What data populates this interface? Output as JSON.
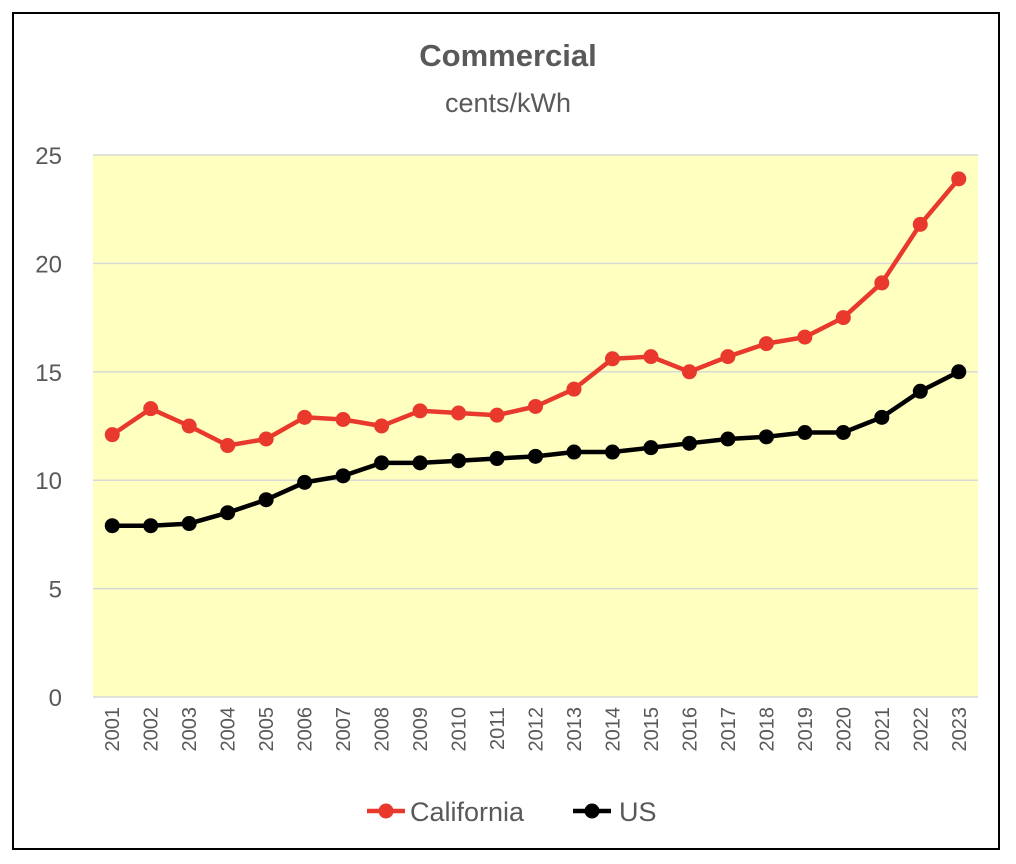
{
  "chart_data": {
    "type": "line",
    "title": "Commercial",
    "subtitle": "cents/kWh",
    "categories": [
      "2001",
      "2002",
      "2003",
      "2004",
      "2005",
      "2006",
      "2007",
      "2008",
      "2009",
      "2010",
      "2011",
      "2012",
      "2013",
      "2014",
      "2015",
      "2016",
      "2017",
      "2018",
      "2019",
      "2020",
      "2021",
      "2022",
      "2023"
    ],
    "series": [
      {
        "name": "California",
        "color": "#e8392c",
        "values": [
          12.1,
          13.3,
          12.5,
          11.6,
          11.9,
          12.9,
          12.8,
          12.5,
          13.2,
          13.1,
          13.0,
          13.4,
          14.2,
          15.6,
          15.7,
          15.0,
          15.7,
          16.3,
          16.6,
          17.5,
          19.1,
          21.8,
          23.9
        ]
      },
      {
        "name": "US",
        "color": "#000000",
        "values": [
          7.9,
          7.9,
          8.0,
          8.5,
          9.1,
          9.9,
          10.2,
          10.8,
          10.8,
          10.9,
          11.0,
          11.1,
          11.3,
          11.3,
          11.5,
          11.7,
          11.9,
          12.0,
          12.2,
          12.2,
          12.9,
          14.1,
          15.0
        ]
      }
    ],
    "ylim": [
      0,
      25
    ],
    "yticks": [
      0,
      5,
      10,
      15,
      20,
      25
    ],
    "grid": true,
    "plot_background": "#ffffc0",
    "legend_position": "bottom"
  }
}
